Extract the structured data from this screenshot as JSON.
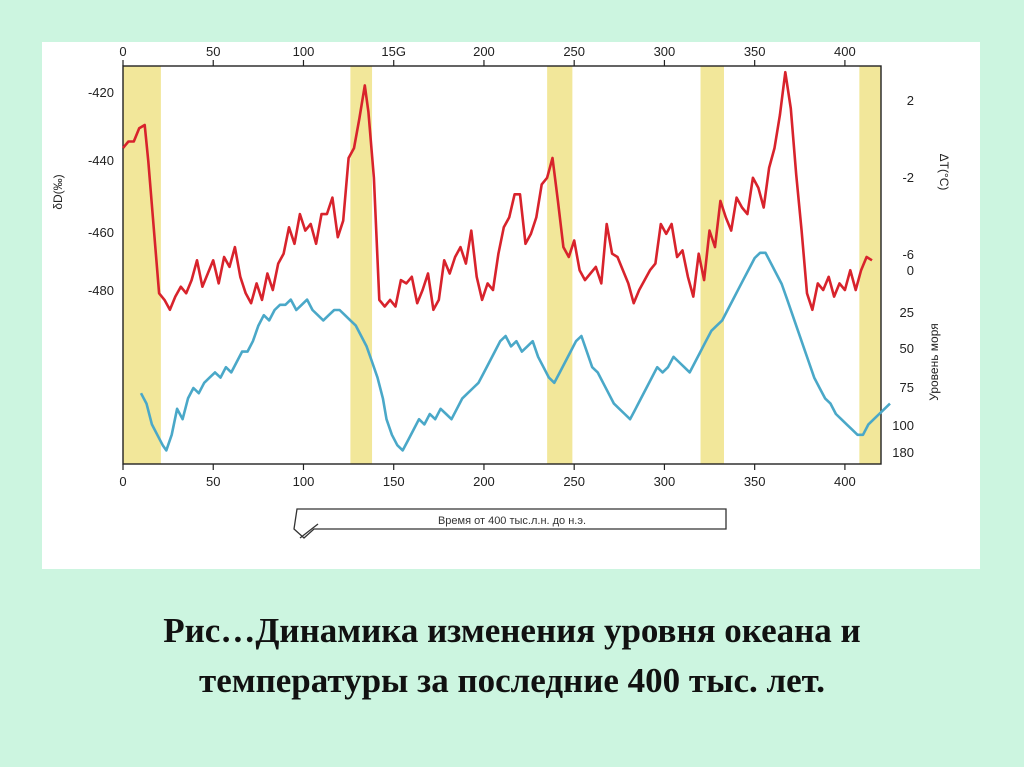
{
  "caption": {
    "line1": "Рис…Динамика изменения уровня океана и",
    "line2": "температуры за последние 400 тыс. лет."
  },
  "colors": {
    "background": "#ccf5e0",
    "deuterium_line": "#d8232c",
    "sea_level_line": "#4aa8c8",
    "interglacial_band": "#f2e79a"
  },
  "chart_data": {
    "type": "line",
    "x_ticks": [
      "0",
      "50",
      "100",
      "150",
      "200",
      "250",
      "300",
      "350",
      "400"
    ],
    "top_x_ticks": [
      "0",
      "50",
      "100",
      "15G",
      "200",
      "250",
      "300",
      "350",
      "400"
    ],
    "xlim": [
      0,
      420
    ],
    "left_axis": {
      "label": "δD(‰)",
      "ticks": [
        "-420",
        "-440",
        "-460",
        "-480"
      ],
      "ylim": [
        -410,
        -488
      ]
    },
    "right_axis_temp": {
      "label": "ΔT(°C)",
      "ticks": [
        "2",
        "-2",
        "-6"
      ]
    },
    "right_axis_sea": {
      "label": "Уровень моря",
      "ticks": [
        "0",
        "25",
        "50",
        "75",
        "100",
        "180"
      ]
    },
    "arrow_label": "Время от 400 тыс.л.н. до н.э.",
    "interglacial_bands": [
      [
        0,
        21
      ],
      [
        126,
        138
      ],
      [
        235,
        249
      ],
      [
        320,
        333
      ],
      [
        408,
        420
      ]
    ],
    "series": [
      {
        "id": "deuterium",
        "x": [
          0,
          3,
          6,
          9,
          12,
          14,
          17,
          20,
          23,
          26,
          29,
          32,
          35,
          38,
          41,
          44,
          47,
          50,
          53,
          56,
          59,
          62,
          65,
          68,
          71,
          74,
          77,
          80,
          83,
          86,
          89,
          92,
          95,
          98,
          101,
          104,
          107,
          110,
          113,
          116,
          119,
          122,
          125,
          128,
          131,
          134,
          136,
          139,
          142,
          145,
          148,
          151,
          154,
          157,
          160,
          163,
          166,
          169,
          172,
          175,
          178,
          181,
          184,
          187,
          190,
          193,
          196,
          199,
          202,
          205,
          208,
          211,
          214,
          217,
          220,
          223,
          226,
          229,
          232,
          235,
          238,
          241,
          244,
          247,
          250,
          253,
          256,
          259,
          262,
          265,
          268,
          271,
          274,
          277,
          280,
          283,
          286,
          289,
          292,
          295,
          298,
          301,
          304,
          307,
          310,
          313,
          316,
          319,
          322,
          325,
          328,
          331,
          334,
          337,
          340,
          343,
          346,
          349,
          352,
          355,
          358,
          361,
          364,
          367,
          370,
          373,
          376,
          379,
          382,
          385,
          388,
          391,
          394,
          397,
          400,
          403,
          406,
          409,
          412,
          415
        ],
        "y": [
          -437,
          -435,
          -435,
          -431,
          -430,
          -441,
          -461,
          -481,
          -483,
          -486,
          -482,
          -479,
          -481,
          -477,
          -471,
          -479,
          -475,
          -471,
          -478,
          -470,
          -473,
          -467,
          -476,
          -481,
          -484,
          -478,
          -483,
          -475,
          -480,
          -472,
          -469,
          -461,
          -466,
          -457,
          -462,
          -460,
          -466,
          -457,
          -457,
          -452,
          -464,
          -459,
          -440,
          -437,
          -428,
          -418,
          -426,
          -446,
          -483,
          -485,
          -483,
          -485,
          -477,
          -478,
          -476,
          -484,
          -480,
          -475,
          -486,
          -483,
          -471,
          -475,
          -470,
          -467,
          -472,
          -462,
          -476,
          -483,
          -478,
          -480,
          -469,
          -461,
          -458,
          -451,
          -451,
          -466,
          -463,
          -458,
          -448,
          -446,
          -440,
          -453,
          -467,
          -470,
          -465,
          -474,
          -477,
          -475,
          -473,
          -478,
          -460,
          -469,
          -470,
          -474,
          -478,
          -484,
          -480,
          -477,
          -474,
          -472,
          -460,
          -463,
          -460,
          -470,
          -468,
          -476,
          -482,
          -469,
          -477,
          -462,
          -467,
          -453,
          -458,
          -462,
          -452,
          -455,
          -457,
          -446,
          -449,
          -455,
          -443,
          -437,
          -427,
          -414,
          -425,
          -445,
          -462,
          -481,
          -486,
          -478,
          -480,
          -476,
          -482,
          -478,
          -480,
          -474,
          -480,
          -474,
          -470,
          -471
        ]
      },
      {
        "id": "sea_level",
        "x": [
          0,
          3,
          6,
          9,
          12,
          14,
          17,
          20,
          23,
          26,
          29,
          32,
          35,
          38,
          41,
          44,
          47,
          50,
          53,
          56,
          59,
          62,
          65,
          68,
          71,
          74,
          77,
          80,
          83,
          86,
          89,
          92,
          95,
          98,
          101,
          104,
          107,
          110,
          113,
          116,
          119,
          122,
          125,
          128,
          131,
          134,
          136,
          139,
          142,
          145,
          148,
          151,
          154,
          157,
          160,
          163,
          166,
          169,
          172,
          175,
          178,
          181,
          184,
          187,
          190,
          193,
          196,
          199,
          202,
          205,
          208,
          211,
          214,
          217,
          220,
          223,
          226,
          229,
          232,
          235,
          238,
          241,
          244,
          247,
          250,
          253,
          256,
          259,
          262,
          265,
          268,
          271,
          274,
          277,
          280,
          283,
          286,
          289,
          292,
          295,
          298,
          301,
          304,
          307,
          310,
          313,
          316,
          319,
          322,
          325,
          328,
          331,
          334,
          337,
          340,
          343,
          346,
          349,
          352,
          355,
          358,
          361,
          364,
          367,
          370,
          373,
          376,
          379,
          382,
          385,
          388,
          391,
          394,
          397,
          400,
          403,
          406,
          409,
          412,
          415
        ],
        "y": [
          -6,
          -8,
          -12,
          -14,
          -16,
          -17,
          -14,
          -9,
          -11,
          -7,
          -5,
          -6,
          -4,
          -3,
          -2,
          -3,
          -1,
          -2,
          0,
          2,
          2,
          4,
          7,
          9,
          8,
          10,
          11,
          11,
          12,
          10,
          11,
          12,
          10,
          9,
          8,
          9,
          10,
          10,
          9,
          8,
          7,
          5,
          3,
          0,
          -3,
          -7,
          -11,
          -14,
          -16,
          -17,
          -15,
          -13,
          -11,
          -12,
          -10,
          -11,
          -9,
          -10,
          -11,
          -9,
          -7,
          -6,
          -5,
          -4,
          -2,
          0,
          2,
          4,
          5,
          3,
          4,
          2,
          3,
          4,
          1,
          -1,
          -3,
          -4,
          -2,
          0,
          2,
          4,
          5,
          2,
          -1,
          -2,
          -4,
          -6,
          -8,
          -9,
          -10,
          -11,
          -9,
          -7,
          -5,
          -3,
          -1,
          -2,
          -1,
          1,
          0,
          -1,
          -2,
          0,
          2,
          4,
          6,
          7,
          8,
          10,
          12,
          14,
          16,
          18,
          20,
          21,
          21,
          19,
          17,
          15,
          12,
          9,
          6,
          3,
          0,
          -3,
          -5,
          -7,
          -8,
          -10,
          -11,
          -12,
          -13,
          -14,
          -14,
          -12,
          -11,
          -10,
          -9,
          -8
        ]
      }
    ]
  }
}
